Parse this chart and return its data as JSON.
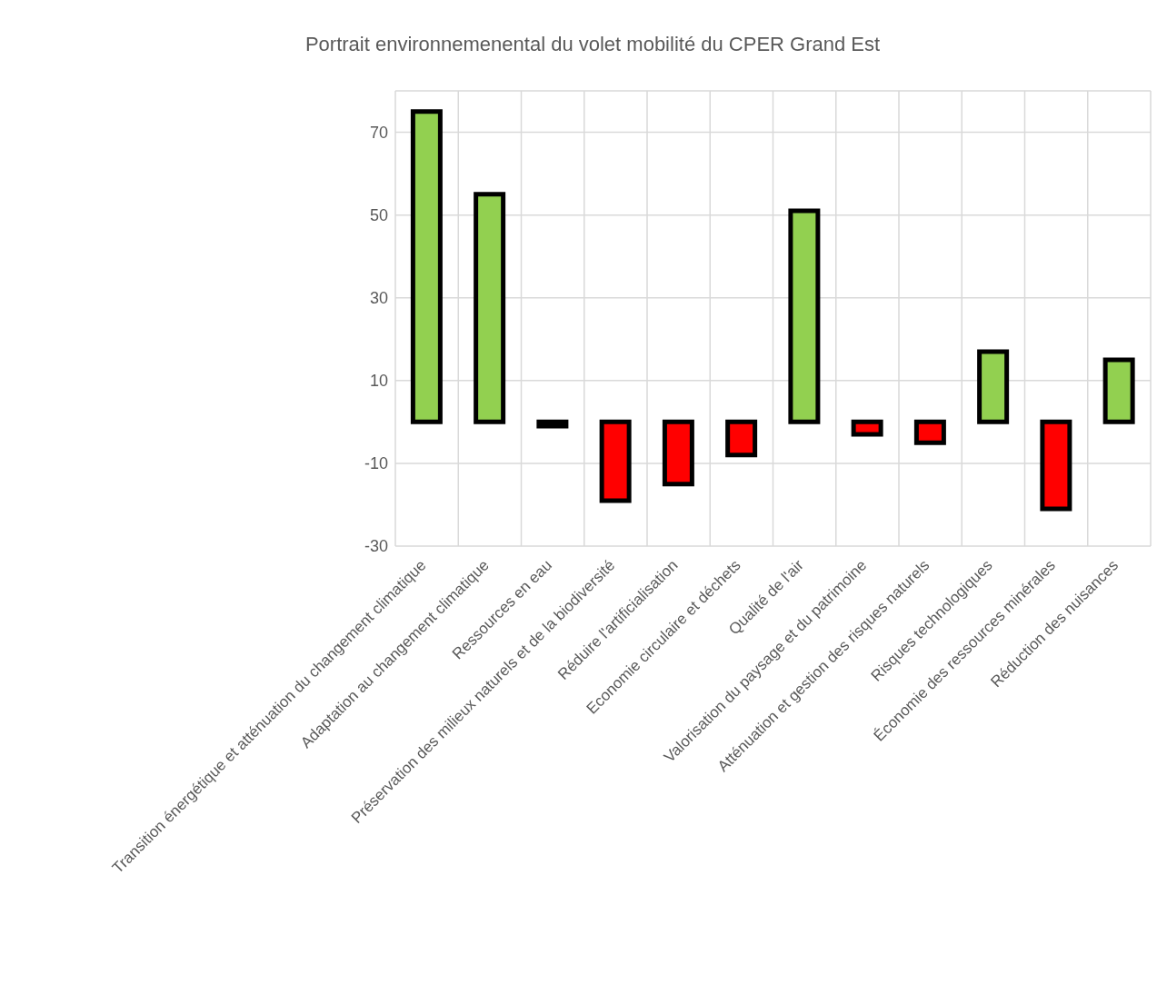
{
  "chart_data": {
    "type": "bar",
    "title": "Portrait environnemenental du volet mobilité du CPER Grand Est",
    "categories": [
      "Transition énergétique et atténuation du changement climatique",
      "Adaptation au changement climatique",
      "Ressources en eau",
      "Préservation des milieux naturels et de la biodiversité",
      "Réduire l'artificialisation",
      "Economie circulaire et déchets",
      "Qualité de l'air",
      "Valorisation du paysage et du patrimoine",
      "Atténuation et gestion des risques naturels",
      "Risques technologiques",
      "Économie des ressources minérales",
      "Réduction des nuisances"
    ],
    "values": [
      75,
      55,
      -1,
      -19,
      -15,
      -8,
      51,
      -3,
      -5,
      17,
      -21,
      15
    ],
    "colors": [
      "#92d050",
      "#92d050",
      "#000000",
      "#ff0000",
      "#ff0000",
      "#ff0000",
      "#92d050",
      "#ff0000",
      "#ff0000",
      "#92d050",
      "#ff0000",
      "#92d050"
    ],
    "ylim": [
      -30,
      80
    ],
    "yticks": [
      -30,
      -10,
      10,
      30,
      50,
      70
    ],
    "grid": true
  }
}
